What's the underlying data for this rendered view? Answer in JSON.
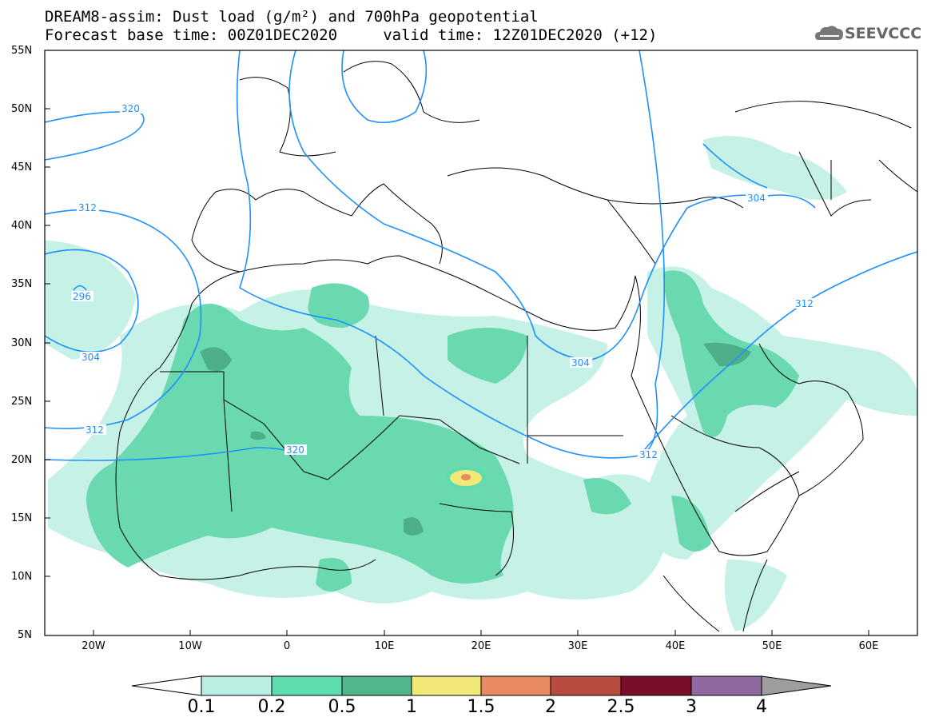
{
  "title_line1": "DREAM8-assim: Dust load (g/m²) and 700hPa geopotential",
  "title_line2": "Forecast base time: 00Z01DEC2020     valid time: 12Z01DEC2020 (+12)",
  "logo_text": "SEEVCCC",
  "logo_icon": "cloud-icon",
  "lat_labels": [
    "55N",
    "50N",
    "45N",
    "40N",
    "35N",
    "30N",
    "25N",
    "20N",
    "15N",
    "10N",
    "5N"
  ],
  "lon_labels": [
    "20W",
    "10W",
    "0",
    "10E",
    "20E",
    "30E",
    "40E",
    "50E",
    "60E"
  ],
  "contour_labels": [
    "320",
    "312",
    "296",
    "304",
    "312",
    "320",
    "304",
    "304",
    "312",
    "312"
  ],
  "colorbar": {
    "labels": [
      "0.1",
      "0.2",
      "0.5",
      "1",
      "1.5",
      "2",
      "2.5",
      "3",
      "4"
    ],
    "colors": [
      "#ffffff",
      "#b9efe2",
      "#5ddcad",
      "#52b68c",
      "#f0e877",
      "#e88a62",
      "#b84c3f",
      "#7a0e2a",
      "#8f6aa1",
      "#9e9e9e"
    ]
  },
  "colors": {
    "contour": "#1e90ff",
    "borders": "#000000",
    "dust_low": "#c5f1e6",
    "dust_mid": "#6ad9b0",
    "dust_high": "#4fae8a"
  }
}
